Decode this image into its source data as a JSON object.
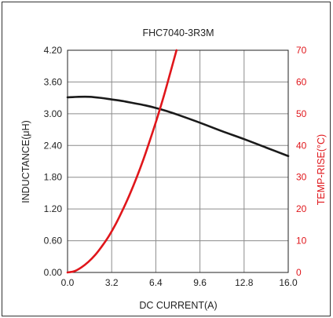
{
  "colors": {
    "frame": "#333333",
    "grid": "#8c8c8c",
    "inductance_line": "#1a1a1a",
    "temp_line": "#e0161b",
    "right_axis_text": "#e0161b"
  },
  "chart_data": {
    "type": "line",
    "title": "FHC7040-3R3M",
    "xlabel": "DC CURRENT(A)",
    "ylabel": "INDUCTANCE(μH)",
    "y2label": "TEMP-RISE(°C)",
    "xlim": [
      0,
      16
    ],
    "ylim": [
      0,
      4.2
    ],
    "y2lim": [
      0,
      70
    ],
    "grid": true,
    "x_ticks": [
      "0.0",
      "3.2",
      "6.4",
      "9.6",
      "12.8",
      "16.0"
    ],
    "x_tick_values": [
      0,
      3.2,
      6.4,
      9.6,
      12.8,
      16.0
    ],
    "y_ticks": [
      "0.00",
      "0.60",
      "1.20",
      "1.80",
      "2.40",
      "3.00",
      "3.60",
      "4.20"
    ],
    "y_tick_values": [
      0,
      0.6,
      1.2,
      1.8,
      2.4,
      3.0,
      3.6,
      4.2
    ],
    "y2_ticks": [
      "0",
      "10",
      "20",
      "30",
      "40",
      "50",
      "60",
      "70"
    ],
    "y2_tick_values": [
      0,
      10,
      20,
      30,
      40,
      50,
      60,
      70
    ],
    "series": [
      {
        "axis": "left",
        "x": [
          0,
          0.8,
          1.6,
          2.4,
          3.2,
          4.0,
          4.8,
          5.6,
          6.4,
          7.2,
          8.0,
          9.6,
          11.2,
          12.8,
          14.4,
          16.0
        ],
        "values": [
          3.31,
          3.32,
          3.32,
          3.3,
          3.27,
          3.24,
          3.2,
          3.16,
          3.11,
          3.05,
          2.98,
          2.83,
          2.67,
          2.52,
          2.36,
          2.2
        ]
      },
      {
        "axis": "right",
        "x": [
          0,
          0.5,
          1.0,
          1.5,
          2.0,
          2.5,
          3.0,
          3.5,
          4.0,
          4.5,
          5.0,
          5.5,
          6.0,
          6.5,
          7.0,
          7.5,
          7.9
        ],
        "values": [
          0,
          0.4,
          1.6,
          3.3,
          5.5,
          8.3,
          11.5,
          15.3,
          19.7,
          24.5,
          29.8,
          35.6,
          42.0,
          48.7,
          55.9,
          63.7,
          70.0
        ]
      }
    ]
  }
}
